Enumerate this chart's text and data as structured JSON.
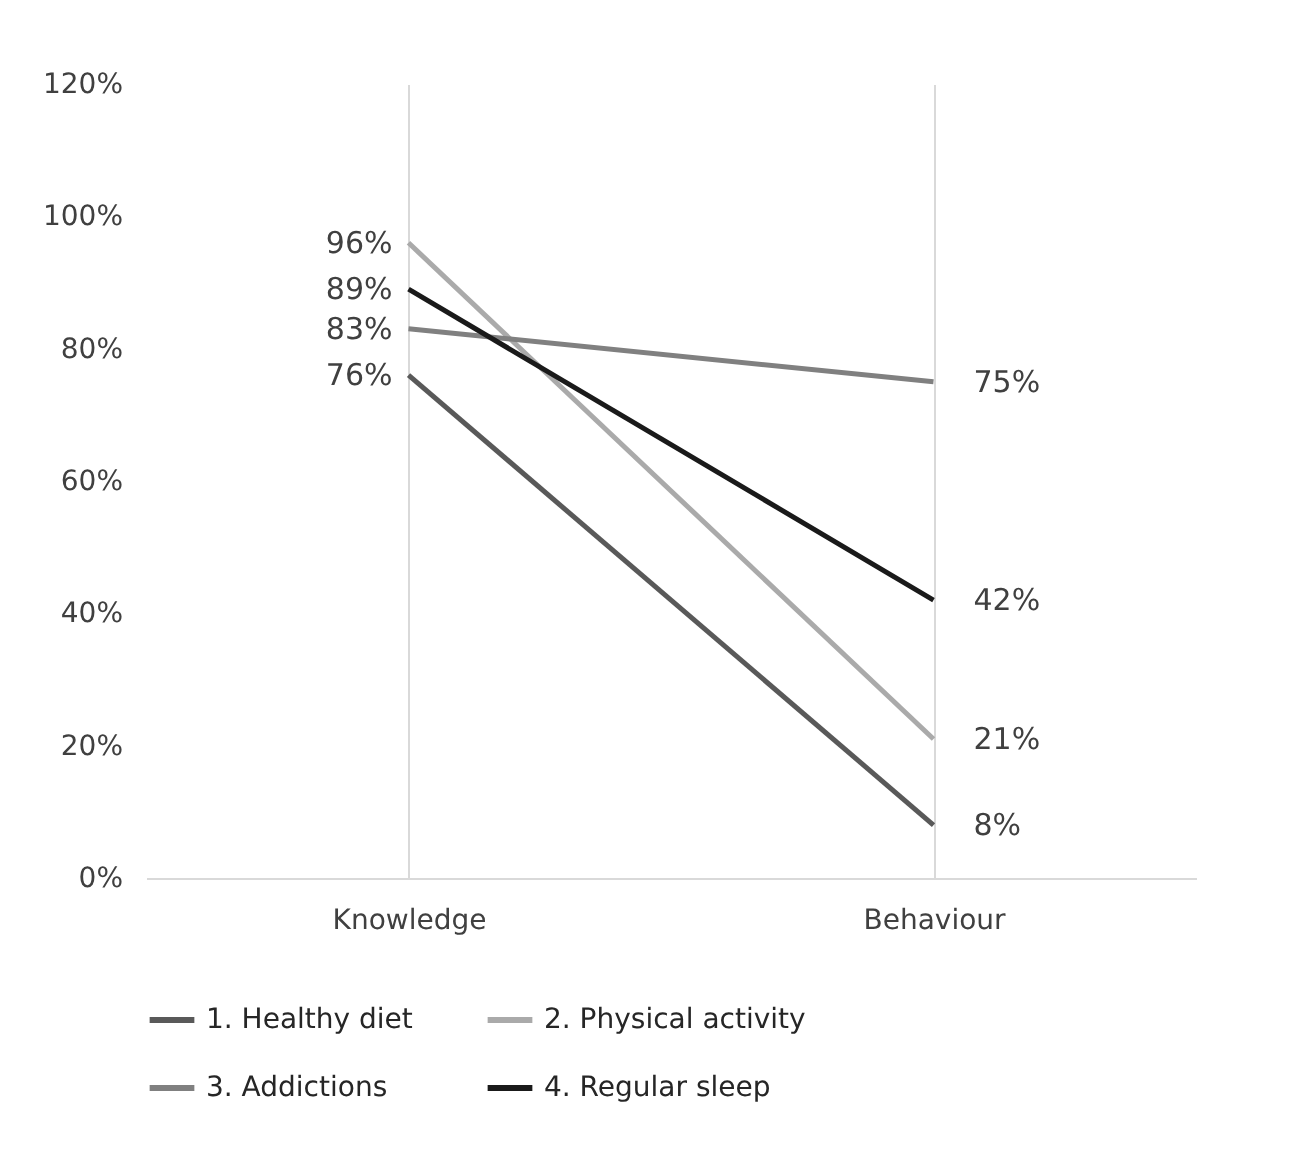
{
  "chart_data": {
    "type": "line",
    "categories": [
      "Knowledge",
      "Behaviour"
    ],
    "series": [
      {
        "name": "1. Healthy diet",
        "color": "#595959",
        "values": [
          76,
          8
        ],
        "value_labels": [
          "76%",
          "8%"
        ]
      },
      {
        "name": "2. Physical activity",
        "color": "#aaaaaa",
        "values": [
          96,
          21
        ],
        "value_labels": [
          "96%",
          "21%"
        ]
      },
      {
        "name": "3. Addictions",
        "color": "#808080",
        "values": [
          83,
          75
        ],
        "value_labels": [
          "83%",
          "75%"
        ]
      },
      {
        "name": "4. Regular sleep",
        "color": "#1a1a1a",
        "values": [
          89,
          42
        ],
        "value_labels": [
          "89%",
          "42%"
        ]
      }
    ],
    "ylim": [
      0,
      120
    ],
    "yticks": [
      {
        "value": 0,
        "label": "0%"
      },
      {
        "value": 20,
        "label": "20%"
      },
      {
        "value": 40,
        "label": "40%"
      },
      {
        "value": 60,
        "label": "60%"
      },
      {
        "value": 80,
        "label": "80%"
      },
      {
        "value": 100,
        "label": "100%"
      },
      {
        "value": 120,
        "label": "120%"
      }
    ],
    "grid": "x",
    "legend": "bottom",
    "marker": "none",
    "line_style": "solid"
  }
}
